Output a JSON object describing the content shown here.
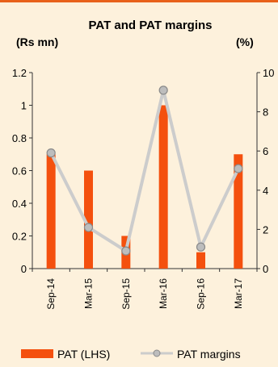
{
  "chart_data": {
    "type": "bar+line",
    "title": "PAT and PAT margins",
    "left_unit_label": "(Rs mn)",
    "right_unit_label": "(%)",
    "categories": [
      "Sep-14",
      "Mar-15",
      "Sep-15",
      "Mar-16",
      "Sep-16",
      "Mar-17"
    ],
    "series": [
      {
        "name": "PAT (LHS)",
        "type": "bar",
        "axis": "left",
        "color": "#f4500e",
        "values": [
          0.7,
          0.6,
          0.2,
          1.0,
          0.1,
          0.7
        ]
      },
      {
        "name": "PAT margins",
        "type": "line",
        "axis": "right",
        "color": "#cccccc",
        "values": [
          5.9,
          2.1,
          0.9,
          9.1,
          1.1,
          5.1
        ]
      }
    ],
    "left_axis": {
      "min": 0,
      "max": 1.2,
      "ticks": [
        "0",
        "0.2",
        "0.4",
        "0.6",
        "0.8",
        "1",
        "1.2"
      ]
    },
    "right_axis": {
      "min": 0,
      "max": 10,
      "ticks": [
        "0",
        "2",
        "4",
        "6",
        "8",
        "10"
      ]
    },
    "grid": false,
    "legend_position": "bottom"
  }
}
